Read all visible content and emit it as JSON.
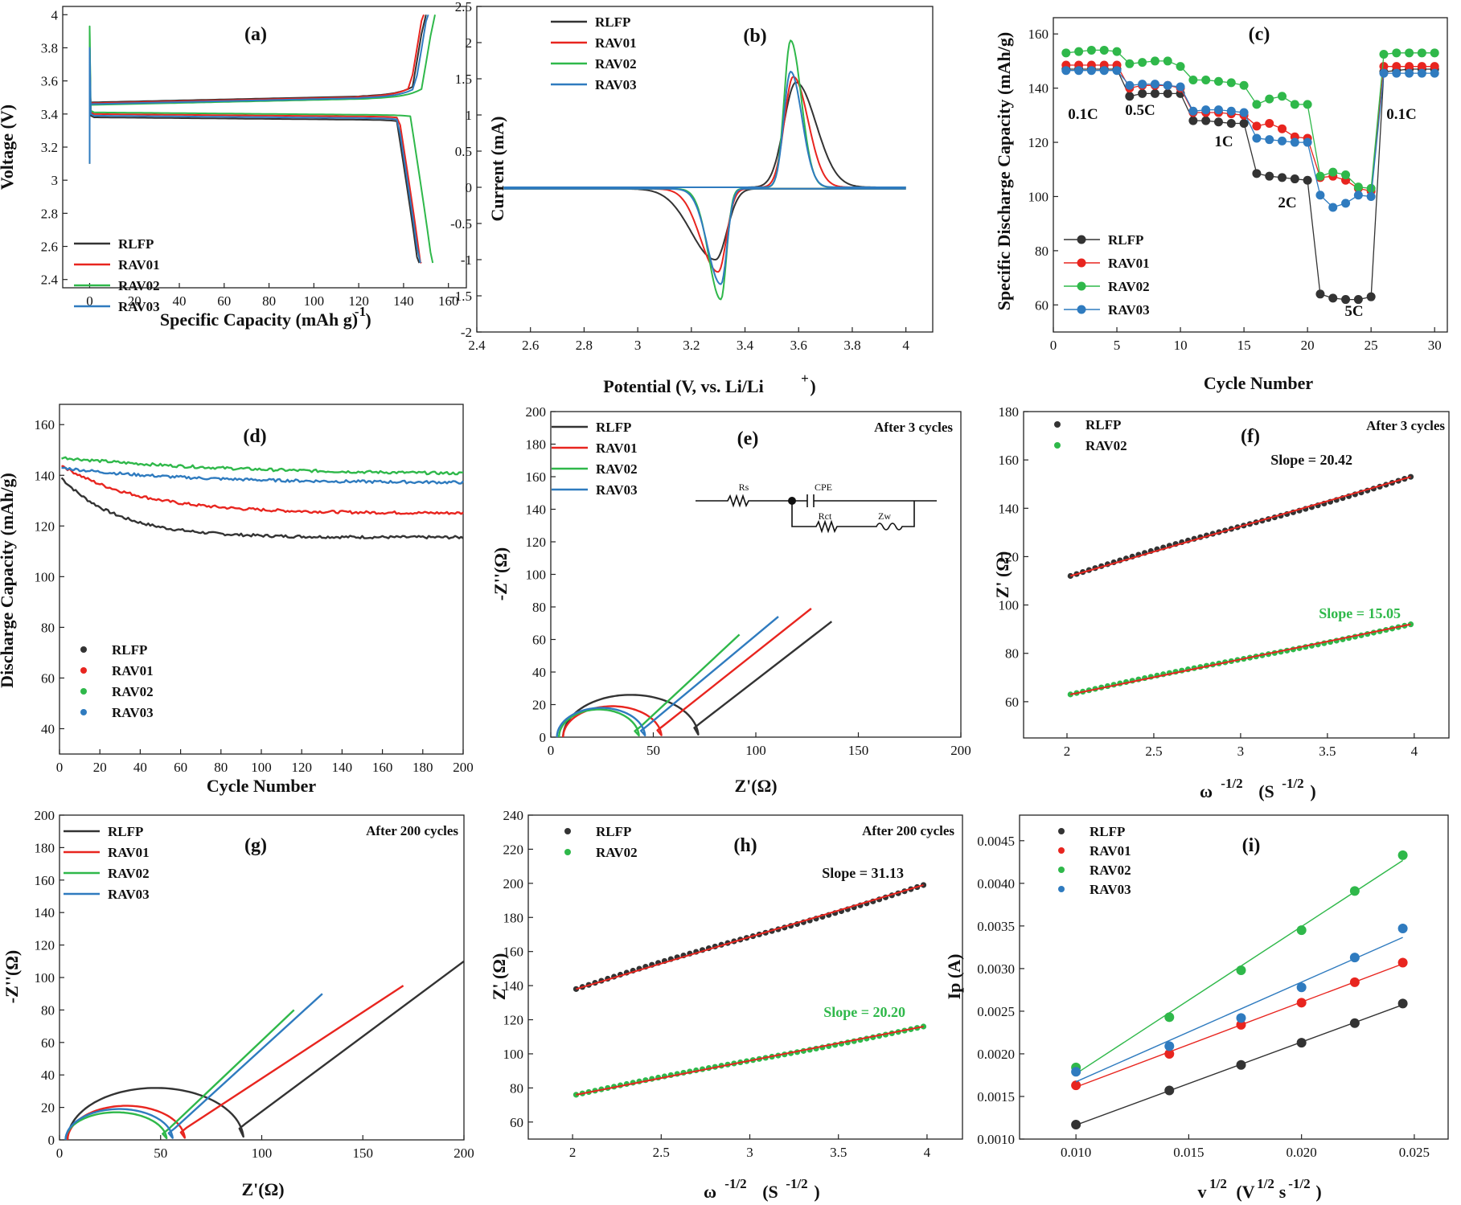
{
  "colors": {
    "RLFP": "#333333",
    "RAV01": "#e8251f",
    "RAV02": "#2fb84a",
    "RAV03": "#2f7bbf",
    "fit": "#e8251f"
  },
  "chart_data": [
    {
      "id": "a",
      "type": "line",
      "panel_label": "(a)",
      "xlabel": "Specific Capacity (mAh g-1)",
      "ylabel": "Voltage (V)",
      "xlim": [
        -12,
        168
      ],
      "ylim": [
        2.35,
        4.05
      ],
      "xticks": [
        0,
        20,
        40,
        60,
        80,
        100,
        120,
        140,
        160
      ],
      "yticks": [
        2.4,
        2.6,
        2.8,
        3.0,
        3.2,
        3.4,
        3.6,
        3.8,
        4.0
      ],
      "legend": [
        "RLFP",
        "RAV01",
        "RAV02",
        "RAV03"
      ],
      "series": [
        {
          "name": "RLFP",
          "charge_plateau_V": 3.47,
          "discharge_plateau_V": 3.38,
          "charge_capacity": 150,
          "discharge_capacity": 147
        },
        {
          "name": "RAV01",
          "charge_plateau_V": 3.465,
          "discharge_plateau_V": 3.4,
          "charge_capacity": 149,
          "discharge_capacity": 148
        },
        {
          "name": "RAV02",
          "charge_plateau_V": 3.455,
          "discharge_plateau_V": 3.41,
          "charge_capacity": 154,
          "discharge_capacity": 153
        },
        {
          "name": "RAV03",
          "charge_plateau_V": 3.46,
          "discharge_plateau_V": 3.39,
          "charge_capacity": 151,
          "discharge_capacity": 147.5
        }
      ]
    },
    {
      "id": "b",
      "type": "line",
      "panel_label": "(b)",
      "xlabel": "Potential (V, vs. Li/Li+)",
      "ylabel": "Current (mA)",
      "xlim": [
        2.4,
        4.1
      ],
      "ylim": [
        -2.0,
        2.5
      ],
      "xticks": [
        2.4,
        2.6,
        2.8,
        3.0,
        3.2,
        3.4,
        3.6,
        3.8,
        4.0
      ],
      "yticks": [
        -2.0,
        -1.5,
        -1.0,
        -0.5,
        0.0,
        0.5,
        1.0,
        1.5,
        2.0,
        2.5
      ],
      "legend": [
        "RLFP",
        "RAV01",
        "RAV02",
        "RAV03"
      ],
      "series": [
        {
          "name": "RLFP",
          "anodic_peak_V": 3.59,
          "anodic_peak_mA": 1.45,
          "cathodic_peak_V": 3.29,
          "cathodic_peak_mA": -0.98
        },
        {
          "name": "RAV01",
          "anodic_peak_V": 3.58,
          "anodic_peak_mA": 1.53,
          "cathodic_peak_V": 3.3,
          "cathodic_peak_mA": -1.15
        },
        {
          "name": "RAV02",
          "anodic_peak_V": 3.57,
          "anodic_peak_mA": 2.03,
          "cathodic_peak_V": 3.31,
          "cathodic_peak_mA": -1.53
        },
        {
          "name": "RAV03",
          "anodic_peak_V": 3.57,
          "anodic_peak_mA": 1.6,
          "cathodic_peak_V": 3.31,
          "cathodic_peak_mA": -1.32
        }
      ]
    },
    {
      "id": "c",
      "type": "line",
      "panel_label": "(c)",
      "xlabel": "Cycle Number",
      "ylabel": "Specific Discharge Capacity (mAh/g)",
      "xlim": [
        0,
        31
      ],
      "ylim": [
        50,
        166
      ],
      "xticks": [
        0,
        5,
        10,
        15,
        20,
        25,
        30
      ],
      "yticks": [
        60,
        80,
        100,
        120,
        140,
        160
      ],
      "rate_labels": [
        "0.1C",
        "0.5C",
        "1C",
        "2C",
        "5C",
        "0.1C"
      ],
      "legend": [
        "RLFP",
        "RAV01",
        "RAV02",
        "RAV03"
      ],
      "series": [
        {
          "name": "RLFP",
          "values": [
            147,
            147,
            147,
            147,
            147,
            137,
            138,
            138,
            138,
            138,
            128,
            128,
            127.5,
            127,
            127,
            108.5,
            107.5,
            107,
            106.5,
            106,
            64,
            62.5,
            62,
            62,
            63,
            146,
            146.5,
            147,
            147,
            147
          ]
        },
        {
          "name": "RAV01",
          "values": [
            148.5,
            148.5,
            148.5,
            148.5,
            148.5,
            140,
            141,
            141,
            141,
            140,
            131,
            131,
            131,
            130.5,
            130,
            126,
            127,
            125,
            122,
            121.5,
            107,
            107.5,
            106,
            103,
            102,
            148,
            148,
            148,
            148,
            148
          ]
        },
        {
          "name": "RAV02",
          "values": [
            153,
            153.5,
            154,
            154,
            153.5,
            149,
            149.5,
            150,
            150,
            148,
            143,
            143,
            142.5,
            142,
            141,
            134,
            136,
            137,
            134,
            134,
            107.5,
            109,
            108,
            103.5,
            103,
            152.5,
            153,
            153,
            153,
            153
          ]
        },
        {
          "name": "RAV03",
          "values": [
            146.5,
            146.5,
            146.5,
            146.5,
            146.5,
            141,
            141.5,
            141.5,
            141,
            140.5,
            131.5,
            132,
            132,
            131.5,
            131,
            121.5,
            121,
            120.5,
            120,
            120,
            100.5,
            96,
            97.5,
            100.5,
            100,
            145.5,
            145.5,
            145.5,
            145.5,
            145.5
          ]
        }
      ]
    },
    {
      "id": "d",
      "type": "line",
      "panel_label": "(d)",
      "xlabel": "Cycle Number",
      "ylabel": "Discharge Capacity (mAh/g)",
      "xlim": [
        0,
        200
      ],
      "ylim": [
        30,
        168
      ],
      "xticks": [
        0,
        20,
        40,
        60,
        80,
        100,
        120,
        140,
        160,
        180,
        200
      ],
      "yticks": [
        40,
        60,
        80,
        100,
        120,
        140,
        160
      ],
      "legend": [
        "RLFP",
        "RAV01",
        "RAV02",
        "RAV03"
      ],
      "series": [
        {
          "name": "RLFP",
          "start": 139,
          "end": 115.5
        },
        {
          "name": "RAV01",
          "start": 144,
          "end": 125
        },
        {
          "name": "RAV02",
          "start": 147,
          "end": 140
        },
        {
          "name": "RAV03",
          "start": 143,
          "end": 137
        }
      ]
    },
    {
      "id": "e",
      "type": "line",
      "panel_label": "(e)",
      "note": "After 3 cycles",
      "xlabel": "Z'(Ω)",
      "ylabel": "-Z''(Ω)",
      "xlim": [
        0,
        200
      ],
      "ylim": [
        0,
        200
      ],
      "xticks": [
        0,
        50,
        100,
        150,
        200
      ],
      "yticks": [
        0,
        20,
        40,
        60,
        80,
        100,
        120,
        140,
        160,
        180,
        200
      ],
      "legend": [
        "RLFP",
        "RAV01",
        "RAV02",
        "RAV03"
      ],
      "circuit": {
        "Rs": "Rs",
        "CPE": "CPE",
        "Rct": "Rct",
        "Zw": "Zw"
      },
      "series": [
        {
          "name": "RLFP",
          "Rs": 6,
          "semicircle_end": 72,
          "arc_top": 26,
          "tail_end": [
            137,
            71
          ]
        },
        {
          "name": "RAV01",
          "Rs": 6,
          "semicircle_end": 54,
          "arc_top": 19,
          "tail_end": [
            127,
            79
          ]
        },
        {
          "name": "RAV02",
          "Rs": 4,
          "semicircle_end": 43,
          "arc_top": 17,
          "tail_end": [
            92,
            63
          ]
        },
        {
          "name": "RAV03",
          "Rs": 3,
          "semicircle_end": 46,
          "arc_top": 18,
          "tail_end": [
            111,
            74
          ]
        }
      ]
    },
    {
      "id": "f",
      "type": "scatter",
      "panel_label": "(f)",
      "note": "After 3 cycles",
      "xlabel": "ω-1/2 (S-1/2)",
      "ylabel": "Z' (Ω)",
      "xlim": [
        1.75,
        4.2
      ],
      "ylim": [
        45,
        180
      ],
      "xticks": [
        2.0,
        2.5,
        3.0,
        3.5,
        4.0
      ],
      "yticks": [
        60,
        80,
        100,
        120,
        140,
        160,
        180
      ],
      "legend": [
        "RLFP",
        "RAV02"
      ],
      "slopes": [
        "Slope = 20.42",
        "Slope = 15.05"
      ],
      "series": [
        {
          "name": "RLFP",
          "x_start": 2.02,
          "x_end": 3.98,
          "y_start": 112,
          "y_end": 153
        },
        {
          "name": "RAV02",
          "x_start": 2.02,
          "x_end": 3.98,
          "y_start": 63,
          "y_end": 92
        }
      ]
    },
    {
      "id": "g",
      "type": "line",
      "panel_label": "(g)",
      "note": "After 200 cycles",
      "xlabel": "Z'(Ω)",
      "ylabel": "-Z''(Ω)",
      "xlim": [
        0,
        200
      ],
      "ylim": [
        0,
        200
      ],
      "xticks": [
        0,
        50,
        100,
        150,
        200
      ],
      "yticks": [
        0,
        20,
        40,
        60,
        80,
        100,
        120,
        140,
        160,
        180,
        200
      ],
      "legend": [
        "RLFP",
        "RAV01",
        "RAV02",
        "RAV03"
      ],
      "series": [
        {
          "name": "RLFP",
          "Rs": 4,
          "semicircle_end": 91,
          "arc_top": 32,
          "tail_end": [
            200,
            110
          ]
        },
        {
          "name": "RAV01",
          "Rs": 4,
          "semicircle_end": 62,
          "arc_top": 21,
          "tail_end": [
            170,
            95
          ]
        },
        {
          "name": "RAV02",
          "Rs": 3,
          "semicircle_end": 53,
          "arc_top": 17,
          "tail_end": [
            116,
            80
          ]
        },
        {
          "name": "RAV03",
          "Rs": 3,
          "semicircle_end": 56,
          "arc_top": 19,
          "tail_end": [
            130,
            90
          ]
        }
      ]
    },
    {
      "id": "h",
      "type": "scatter",
      "panel_label": "(h)",
      "note": "After 200 cycles",
      "xlabel": "ω-1/2 (S-1/2)",
      "ylabel": "Z' (Ω)",
      "xlim": [
        1.75,
        4.2
      ],
      "ylim": [
        50,
        240
      ],
      "xticks": [
        2.0,
        2.5,
        3.0,
        3.5,
        4.0
      ],
      "yticks": [
        60,
        80,
        100,
        120,
        140,
        160,
        180,
        200,
        220,
        240
      ],
      "legend": [
        "RLFP",
        "RAV02"
      ],
      "slopes": [
        "Slope = 31.13",
        "Slope = 20.20"
      ],
      "series": [
        {
          "name": "RLFP",
          "x_start": 2.02,
          "x_end": 3.98,
          "y_start": 138,
          "y_end": 199
        },
        {
          "name": "RAV02",
          "x_start": 2.02,
          "x_end": 3.98,
          "y_start": 76,
          "y_end": 116
        }
      ]
    },
    {
      "id": "i",
      "type": "scatter",
      "panel_label": "(i)",
      "xlabel": "v1/2 (V1/2s-1/2)",
      "ylabel": "Ip (A)",
      "xlim": [
        0.0075,
        0.0265
      ],
      "ylim": [
        0.001,
        0.0048
      ],
      "xticks": [
        0.01,
        0.015,
        0.02,
        0.025
      ],
      "xtick_labels": [
        "0.010",
        "0.015",
        "0.020",
        "0.025"
      ],
      "yticks": [
        0.001,
        0.0015,
        0.002,
        0.0025,
        0.003,
        0.0035,
        0.004,
        0.0045
      ],
      "ytick_labels": [
        "0.0010",
        "0.0015",
        "0.0020",
        "0.0025",
        "0.0030",
        "0.0035",
        "0.0040",
        "0.0045"
      ],
      "legend": [
        "RLFP",
        "RAV01",
        "RAV02",
        "RAV03"
      ],
      "x": [
        0.01,
        0.01414,
        0.01732,
        0.02,
        0.02236,
        0.02449
      ],
      "series": [
        {
          "name": "RLFP",
          "values": [
            0.00117,
            0.00157,
            0.00187,
            0.00213,
            0.00236,
            0.00259
          ]
        },
        {
          "name": "RAV01",
          "values": [
            0.00163,
            0.002,
            0.00234,
            0.0026,
            0.00284,
            0.00307
          ]
        },
        {
          "name": "RAV02",
          "values": [
            0.00184,
            0.00243,
            0.00298,
            0.00345,
            0.00391,
            0.00433
          ]
        },
        {
          "name": "RAV03",
          "values": [
            0.00179,
            0.00209,
            0.00242,
            0.00278,
            0.00313,
            0.00347
          ]
        }
      ]
    }
  ]
}
